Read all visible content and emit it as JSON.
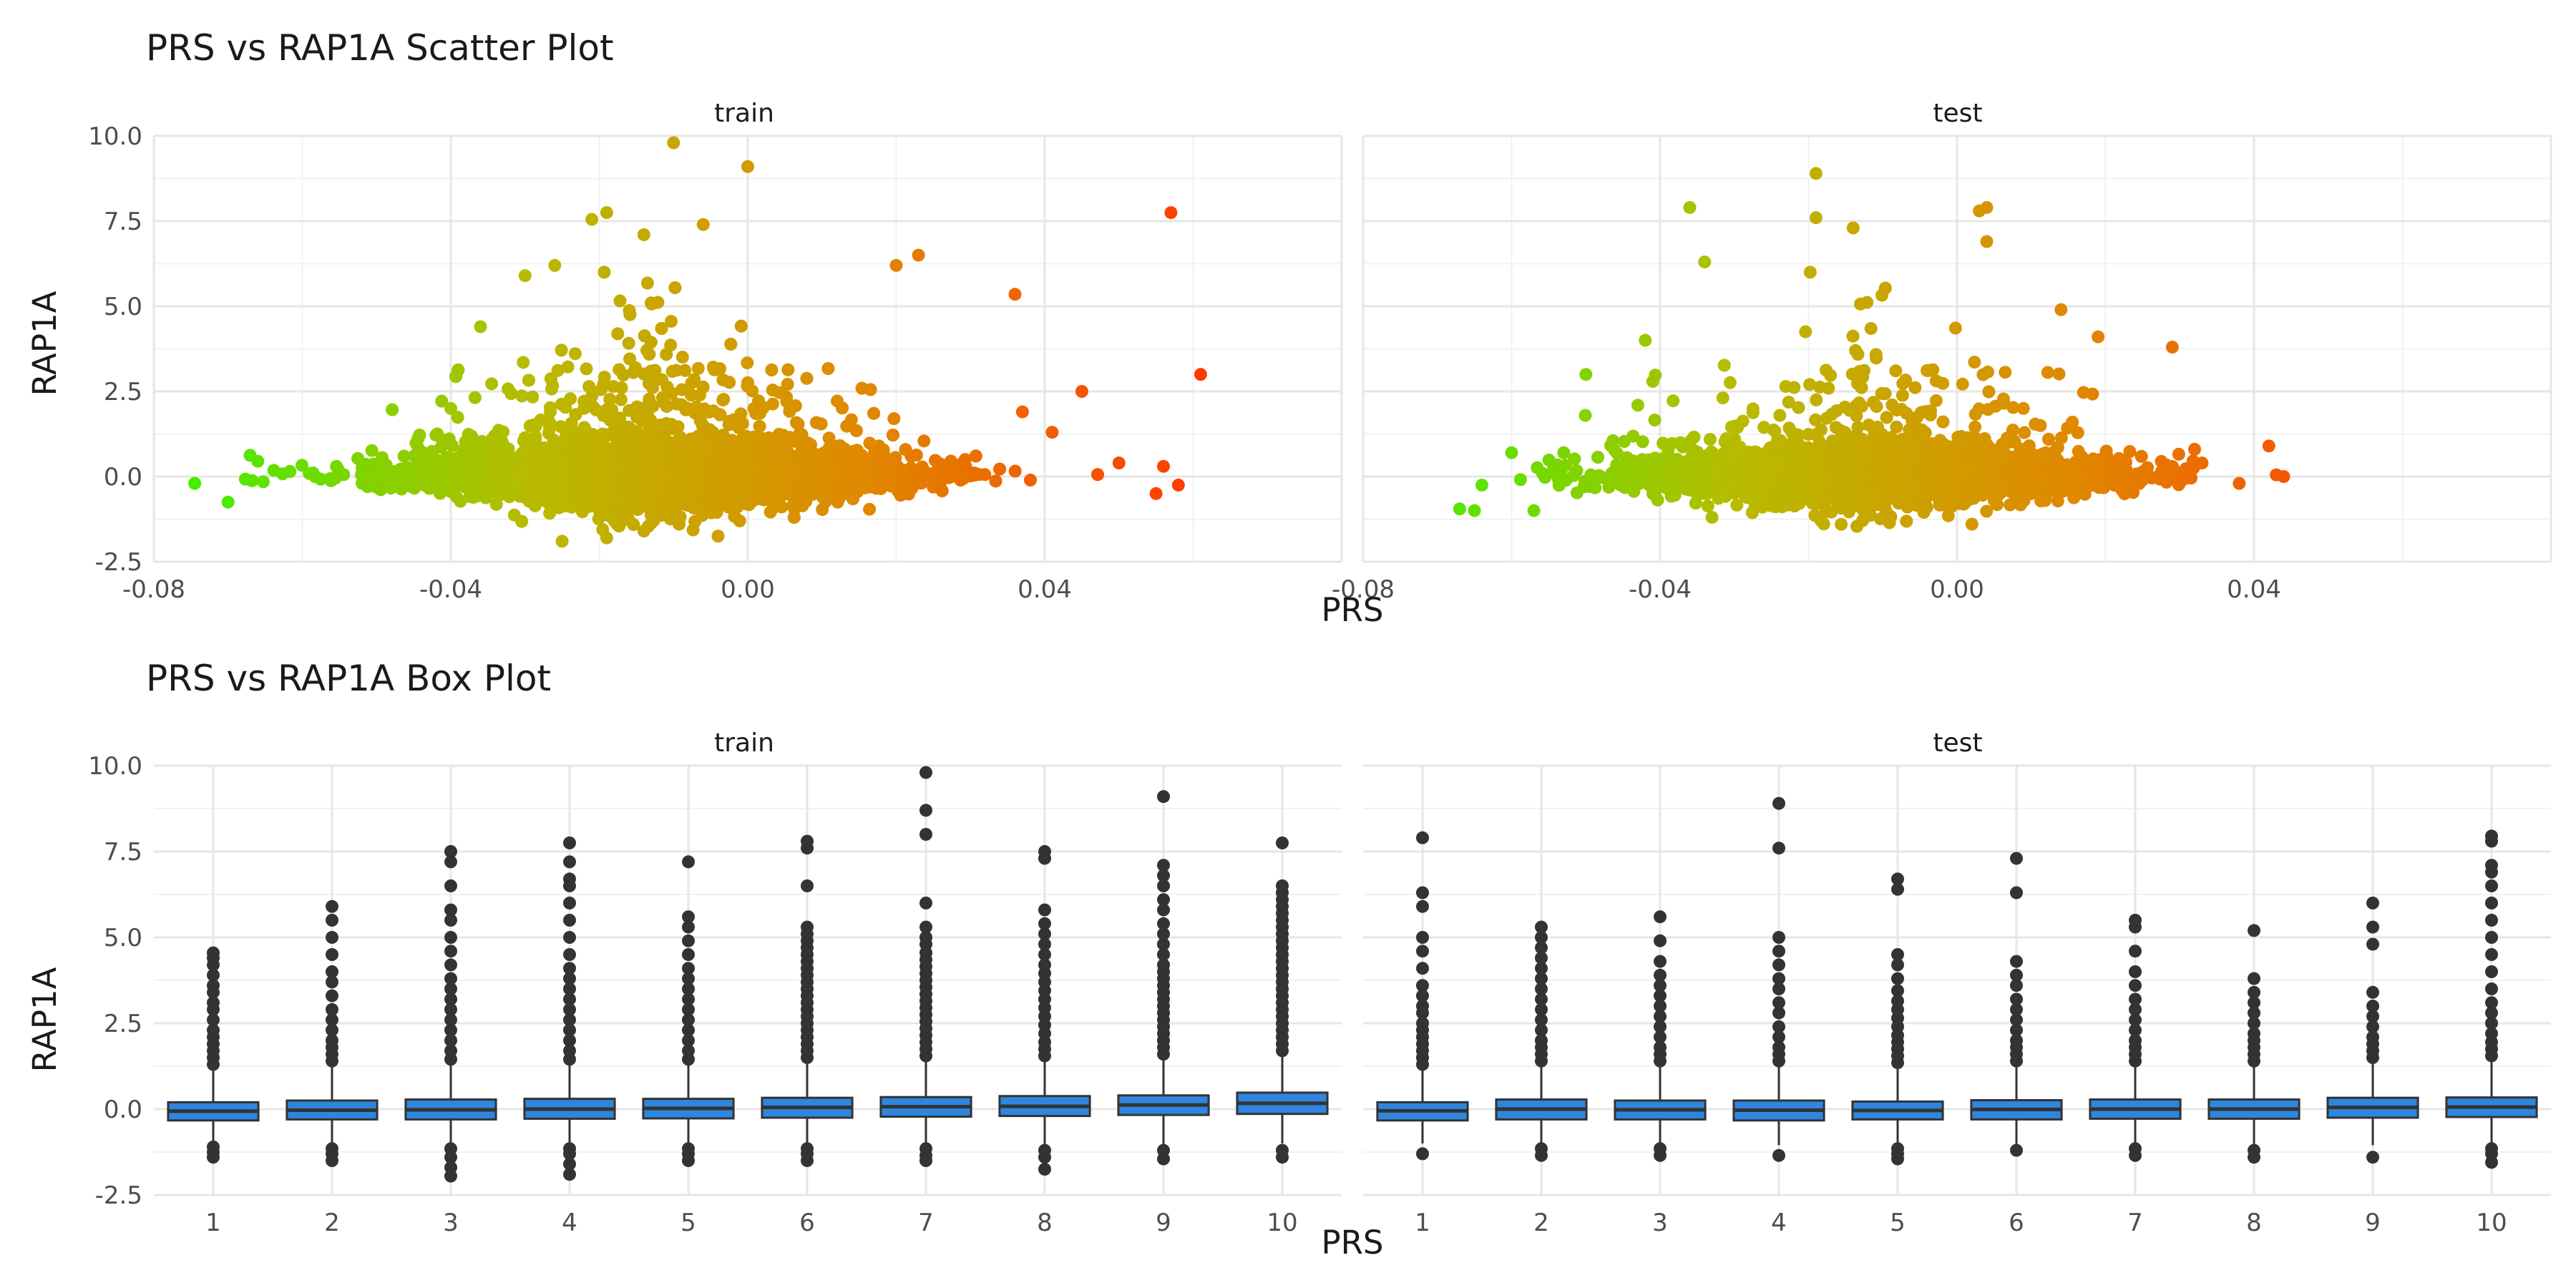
{
  "chart_data": [
    {
      "type": "scatter",
      "title": "PRS vs RAP1A Scatter Plot",
      "xlabel": "PRS",
      "ylabel": "RAP1A",
      "xlim": [
        -0.08,
        0.08
      ],
      "ylim": [
        -2.5,
        10
      ],
      "x_ticks": [
        "-0.08",
        "-0.04",
        "0.00",
        "0.04"
      ],
      "y_ticks": [
        "-2.5",
        "0.0",
        "2.5",
        "5.0",
        "7.5",
        "10.0"
      ],
      "color_gradient": [
        "#44ee00",
        "#b8bb00",
        "#e08800",
        "#ff3a00"
      ],
      "grid": true,
      "panels": [
        {
          "name": "train",
          "n_points_approx": 5000,
          "prs_range": [
            -0.075,
            0.061
          ],
          "highlight_points": [
            {
              "x": -0.0745,
              "y": -0.2
            },
            {
              "x": -0.07,
              "y": -0.75
            },
            {
              "x": -0.066,
              "y": 0.45
            },
            {
              "x": -0.04,
              "y": 2.0
            },
            {
              "x": -0.036,
              "y": 4.4
            },
            {
              "x": -0.03,
              "y": 5.9
            },
            {
              "x": -0.026,
              "y": 6.2
            },
            {
              "x": -0.021,
              "y": 7.55
            },
            {
              "x": -0.019,
              "y": 7.75
            },
            {
              "x": -0.014,
              "y": 7.1
            },
            {
              "x": -0.01,
              "y": 9.8
            },
            {
              "x": -0.006,
              "y": 7.4
            },
            {
              "x": 0.0,
              "y": 9.1
            },
            {
              "x": 0.02,
              "y": 6.2
            },
            {
              "x": 0.023,
              "y": 6.5
            },
            {
              "x": 0.036,
              "y": 5.35
            },
            {
              "x": 0.037,
              "y": 1.9
            },
            {
              "x": 0.041,
              "y": 1.3
            },
            {
              "x": 0.045,
              "y": 2.5
            },
            {
              "x": 0.05,
              "y": 0.4
            },
            {
              "x": 0.055,
              "y": -0.5
            },
            {
              "x": 0.056,
              "y": 0.3
            },
            {
              "x": 0.057,
              "y": 7.75
            },
            {
              "x": 0.058,
              "y": -0.25
            },
            {
              "x": 0.061,
              "y": 3.0
            },
            {
              "x": -0.025,
              "y": -1.9
            },
            {
              "x": -0.019,
              "y": -1.8
            },
            {
              "x": -0.014,
              "y": -1.6
            },
            {
              "x": -0.004,
              "y": -1.75
            }
          ]
        },
        {
          "name": "test",
          "n_points_approx": 2500,
          "prs_range": [
            -0.067,
            0.044
          ],
          "highlight_points": [
            {
              "x": -0.067,
              "y": -0.95
            },
            {
              "x": -0.065,
              "y": -1.0
            },
            {
              "x": -0.064,
              "y": -0.25
            },
            {
              "x": -0.06,
              "y": 0.7
            },
            {
              "x": -0.057,
              "y": -1.0
            },
            {
              "x": -0.05,
              "y": 3.0
            },
            {
              "x": -0.042,
              "y": 4.0
            },
            {
              "x": -0.036,
              "y": 7.9
            },
            {
              "x": -0.034,
              "y": 6.3
            },
            {
              "x": -0.019,
              "y": 8.9
            },
            {
              "x": -0.019,
              "y": 7.6
            },
            {
              "x": -0.014,
              "y": 7.3
            },
            {
              "x": 0.003,
              "y": 7.8
            },
            {
              "x": 0.004,
              "y": 7.9
            },
            {
              "x": 0.004,
              "y": 6.9
            },
            {
              "x": 0.014,
              "y": 4.9
            },
            {
              "x": 0.019,
              "y": 4.1
            },
            {
              "x": 0.029,
              "y": 3.8
            },
            {
              "x": 0.032,
              "y": 0.8
            },
            {
              "x": 0.033,
              "y": 0.4
            },
            {
              "x": 0.038,
              "y": -0.2
            },
            {
              "x": 0.042,
              "y": 0.9
            },
            {
              "x": 0.043,
              "y": 0.05
            },
            {
              "x": 0.044,
              "y": 0.0
            },
            {
              "x": 0.002,
              "y": -1.4
            },
            {
              "x": -0.033,
              "y": -1.2
            }
          ]
        }
      ]
    },
    {
      "type": "box",
      "title": "PRS vs RAP1A Box Plot",
      "xlabel": "PRS",
      "ylabel": "RAP1A",
      "categories": [
        "1",
        "2",
        "3",
        "4",
        "5",
        "6",
        "7",
        "8",
        "9",
        "10"
      ],
      "ylim": [
        -2.5,
        10
      ],
      "y_ticks": [
        "-2.5",
        "0.0",
        "2.5",
        "5.0",
        "7.5",
        "10.0"
      ],
      "box_fill": "#2e86de",
      "grid": true,
      "panels": [
        {
          "name": "train",
          "boxes": [
            {
              "q1": -0.33,
              "median": -0.06,
              "q3": 0.2,
              "whisker_low": -1.0,
              "whisker_high": 1.2,
              "outliers_high": [
                1.3,
                1.5,
                1.7,
                1.9,
                2.1,
                2.3,
                2.6,
                2.9,
                3.1,
                3.4,
                3.6,
                3.9,
                4.2,
                4.4,
                4.55
              ],
              "outliers_low": [
                -1.1,
                -1.25,
                -1.4
              ]
            },
            {
              "q1": -0.3,
              "median": -0.03,
              "q3": 0.25,
              "whisker_low": -1.05,
              "whisker_high": 1.3,
              "outliers_high": [
                1.4,
                1.6,
                1.8,
                2.0,
                2.3,
                2.6,
                2.9,
                3.3,
                3.7,
                4.0,
                4.5,
                5.0,
                5.5,
                5.9
              ],
              "outliers_low": [
                -1.15,
                -1.3,
                -1.5
              ]
            },
            {
              "q1": -0.3,
              "median": -0.02,
              "q3": 0.28,
              "whisker_low": -1.05,
              "whisker_high": 1.35,
              "outliers_high": [
                1.45,
                1.7,
                2.0,
                2.3,
                2.6,
                2.9,
                3.2,
                3.5,
                3.8,
                4.2,
                4.6,
                5.0,
                5.5,
                5.8,
                6.5,
                7.2,
                7.5
              ],
              "outliers_low": [
                -1.15,
                -1.4,
                -1.7,
                -1.95
              ]
            },
            {
              "q1": -0.28,
              "median": 0.0,
              "q3": 0.3,
              "whisker_low": -1.05,
              "whisker_high": 1.35,
              "outliers_high": [
                1.45,
                1.7,
                2.0,
                2.3,
                2.6,
                2.9,
                3.2,
                3.5,
                3.8,
                4.1,
                4.5,
                5.0,
                5.5,
                6.0,
                6.5,
                6.7,
                7.2,
                7.75
              ],
              "outliers_low": [
                -1.15,
                -1.3,
                -1.6,
                -1.9
              ]
            },
            {
              "q1": -0.27,
              "median": 0.02,
              "q3": 0.3,
              "whisker_low": -1.05,
              "whisker_high": 1.35,
              "outliers_high": [
                1.45,
                1.7,
                2.0,
                2.3,
                2.6,
                2.9,
                3.2,
                3.5,
                3.8,
                4.1,
                4.5,
                4.9,
                5.3,
                5.6,
                7.2
              ],
              "outliers_low": [
                -1.15,
                -1.3,
                -1.5
              ]
            },
            {
              "q1": -0.25,
              "median": 0.05,
              "q3": 0.33,
              "whisker_low": -1.05,
              "whisker_high": 1.4,
              "outliers_high": [
                1.5,
                1.7,
                1.9,
                2.1,
                2.3,
                2.5,
                2.7,
                2.9,
                3.1,
                3.3,
                3.5,
                3.7,
                3.9,
                4.1,
                4.3,
                4.5,
                4.7,
                4.9,
                5.1,
                5.3,
                6.5,
                7.6,
                7.8
              ],
              "outliers_low": [
                -1.15,
                -1.3,
                -1.5
              ]
            },
            {
              "q1": -0.22,
              "median": 0.07,
              "q3": 0.35,
              "whisker_low": -1.05,
              "whisker_high": 1.45,
              "outliers_high": [
                1.55,
                1.75,
                1.95,
                2.15,
                2.35,
                2.55,
                2.75,
                2.95,
                3.15,
                3.35,
                3.55,
                3.75,
                3.95,
                4.15,
                4.35,
                4.55,
                4.8,
                5.0,
                5.3,
                6.0,
                8.0,
                8.7,
                9.8
              ],
              "outliers_low": [
                -1.15,
                -1.35,
                -1.5
              ]
            },
            {
              "q1": -0.2,
              "median": 0.08,
              "q3": 0.38,
              "whisker_low": -1.05,
              "whisker_high": 1.45,
              "outliers_high": [
                1.55,
                1.75,
                1.95,
                2.2,
                2.45,
                2.7,
                2.95,
                3.2,
                3.45,
                3.7,
                3.95,
                4.2,
                4.5,
                4.8,
                5.1,
                5.4,
                5.8,
                7.3,
                7.5
              ],
              "outliers_low": [
                -1.2,
                -1.4,
                -1.75
              ]
            },
            {
              "q1": -0.17,
              "median": 0.12,
              "q3": 0.4,
              "whisker_low": -1.05,
              "whisker_high": 1.5,
              "outliers_high": [
                1.6,
                1.8,
                2.0,
                2.2,
                2.4,
                2.6,
                2.8,
                3.0,
                3.2,
                3.4,
                3.6,
                3.8,
                4.0,
                4.2,
                4.5,
                4.8,
                5.1,
                5.4,
                5.8,
                6.1,
                6.5,
                6.8,
                7.1,
                9.1
              ],
              "outliers_low": [
                -1.2,
                -1.45
              ]
            },
            {
              "q1": -0.14,
              "median": 0.17,
              "q3": 0.48,
              "whisker_low": -1.0,
              "whisker_high": 1.6,
              "outliers_high": [
                1.7,
                1.9,
                2.1,
                2.3,
                2.5,
                2.7,
                2.9,
                3.1,
                3.3,
                3.5,
                3.7,
                3.9,
                4.1,
                4.3,
                4.5,
                4.7,
                4.9,
                5.1,
                5.3,
                5.5,
                5.7,
                5.9,
                6.1,
                6.3,
                6.5,
                7.75
              ],
              "outliers_low": [
                -1.2,
                -1.4
              ]
            }
          ]
        },
        {
          "name": "test",
          "boxes": [
            {
              "q1": -0.33,
              "median": -0.05,
              "q3": 0.2,
              "whisker_low": -1.0,
              "whisker_high": 1.2,
              "outliers_high": [
                1.3,
                1.5,
                1.7,
                1.9,
                2.1,
                2.3,
                2.5,
                2.8,
                3.0,
                3.3,
                3.6,
                4.1,
                4.6,
                5.0,
                5.9,
                6.3,
                7.9
              ],
              "outliers_low": [
                -1.3
              ]
            },
            {
              "q1": -0.3,
              "median": 0.0,
              "q3": 0.28,
              "whisker_low": -1.05,
              "whisker_high": 1.3,
              "outliers_high": [
                1.4,
                1.6,
                1.8,
                2.0,
                2.3,
                2.6,
                2.9,
                3.2,
                3.5,
                3.8,
                4.1,
                4.4,
                4.7,
                5.0,
                5.3
              ],
              "outliers_low": [
                -1.15,
                -1.35
              ]
            },
            {
              "q1": -0.3,
              "median": -0.02,
              "q3": 0.25,
              "whisker_low": -1.05,
              "whisker_high": 1.3,
              "outliers_high": [
                1.4,
                1.6,
                1.8,
                2.1,
                2.4,
                2.7,
                3.0,
                3.3,
                3.6,
                3.9,
                4.3,
                4.9,
                5.6
              ],
              "outliers_low": [
                -1.15,
                -1.35
              ]
            },
            {
              "q1": -0.33,
              "median": -0.03,
              "q3": 0.25,
              "whisker_low": -1.05,
              "whisker_high": 1.3,
              "outliers_high": [
                1.4,
                1.6,
                1.8,
                2.1,
                2.4,
                2.8,
                3.1,
                3.5,
                3.8,
                4.2,
                4.6,
                5.0,
                7.6,
                8.9
              ],
              "outliers_low": [
                -1.35
              ]
            },
            {
              "q1": -0.3,
              "median": -0.04,
              "q3": 0.22,
              "whisker_low": -1.05,
              "whisker_high": 1.25,
              "outliers_high": [
                1.35,
                1.55,
                1.75,
                1.95,
                2.15,
                2.4,
                2.65,
                2.9,
                3.15,
                3.45,
                3.8,
                4.2,
                4.5,
                6.4,
                6.7
              ],
              "outliers_low": [
                -1.15,
                -1.3,
                -1.45
              ]
            },
            {
              "q1": -0.3,
              "median": -0.01,
              "q3": 0.26,
              "whisker_low": -1.05,
              "whisker_high": 1.3,
              "outliers_high": [
                1.4,
                1.6,
                1.8,
                2.0,
                2.3,
                2.6,
                2.9,
                3.2,
                3.6,
                3.9,
                4.3,
                6.3,
                7.3
              ],
              "outliers_low": [
                -1.2
              ]
            },
            {
              "q1": -0.28,
              "median": 0.0,
              "q3": 0.28,
              "whisker_low": -1.05,
              "whisker_high": 1.3,
              "outliers_high": [
                1.4,
                1.6,
                1.8,
                2.0,
                2.3,
                2.6,
                2.9,
                3.2,
                3.6,
                4.0,
                4.6,
                5.3,
                5.5
              ],
              "outliers_low": [
                -1.15,
                -1.35
              ]
            },
            {
              "q1": -0.28,
              "median": 0.0,
              "q3": 0.28,
              "whisker_low": -1.05,
              "whisker_high": 1.3,
              "outliers_high": [
                1.4,
                1.6,
                1.8,
                2.0,
                2.2,
                2.5,
                2.8,
                3.1,
                3.4,
                3.8,
                5.2
              ],
              "outliers_low": [
                -1.2,
                -1.4
              ]
            },
            {
              "q1": -0.25,
              "median": 0.05,
              "q3": 0.33,
              "whisker_low": -1.05,
              "whisker_high": 1.4,
              "outliers_high": [
                1.5,
                1.7,
                1.9,
                2.1,
                2.4,
                2.7,
                3.0,
                3.4,
                4.8,
                5.3,
                6.0
              ],
              "outliers_low": [
                -1.4
              ]
            },
            {
              "q1": -0.23,
              "median": 0.06,
              "q3": 0.34,
              "whisker_low": -1.05,
              "whisker_high": 1.45,
              "outliers_high": [
                1.55,
                1.75,
                1.95,
                2.2,
                2.5,
                2.8,
                3.1,
                3.5,
                4.0,
                4.5,
                5.0,
                5.5,
                6.0,
                6.5,
                6.9,
                7.1,
                7.8,
                7.95
              ],
              "outliers_low": [
                -1.15,
                -1.3,
                -1.55
              ]
            }
          ]
        }
      ]
    }
  ]
}
